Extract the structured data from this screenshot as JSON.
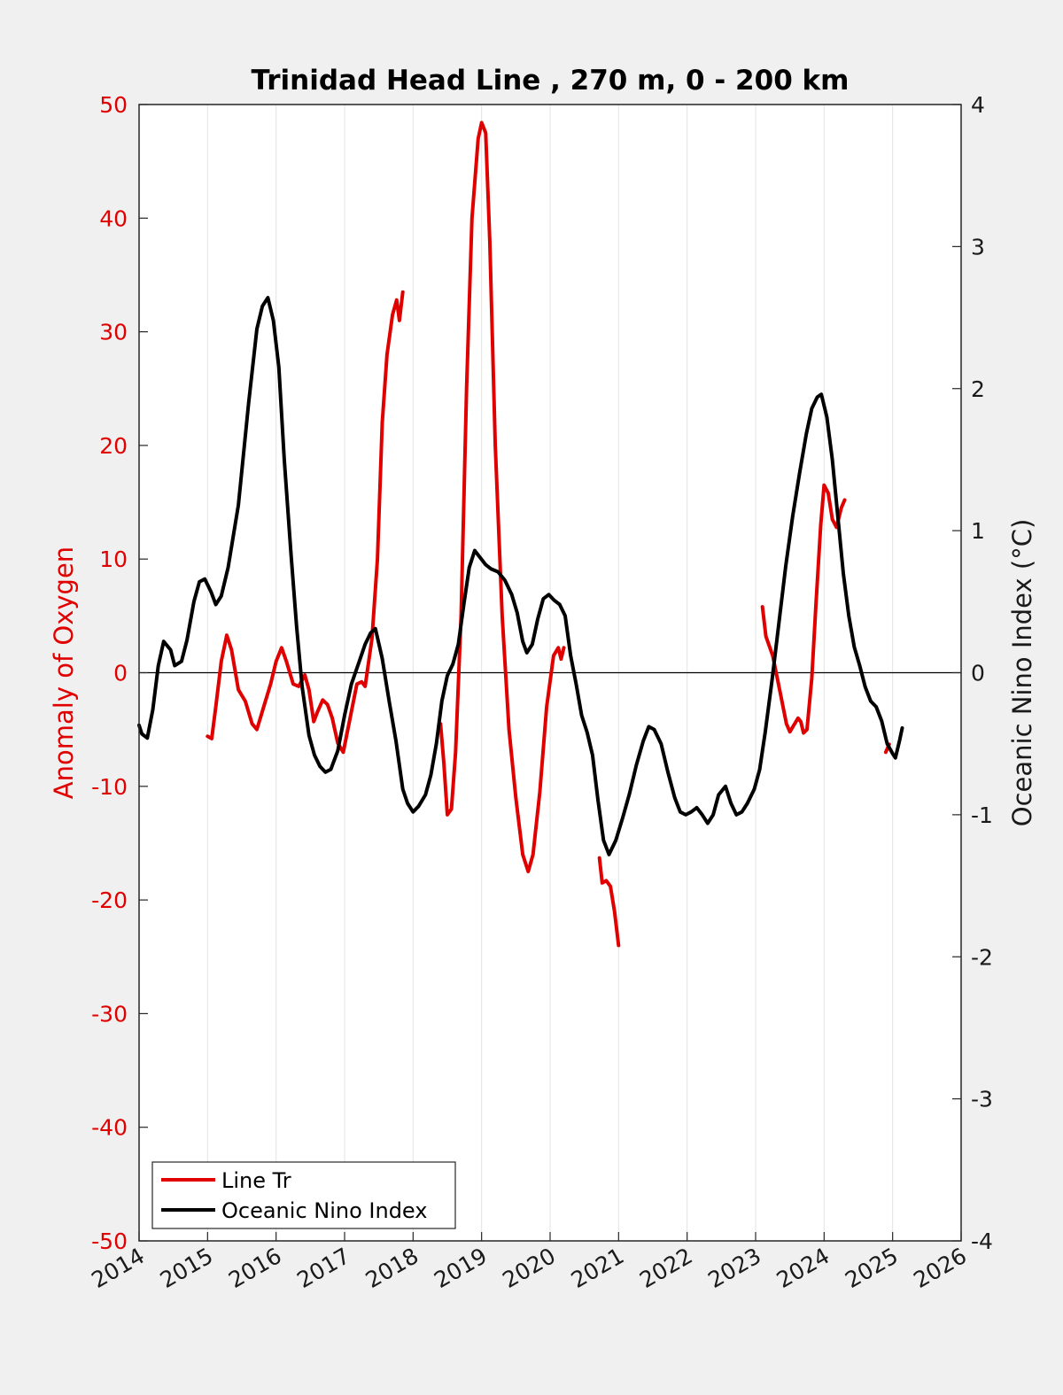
{
  "chart_data": {
    "type": "line",
    "title": "Trinidad Head Line , 270 m, 0 - 200 km",
    "xlabel": "",
    "ylabel_left": "Anomaly of Oxygen",
    "ylabel_right": "Oceanic Nino Index (°C)",
    "xlim": [
      2014,
      2026
    ],
    "ylim_left": [
      -50,
      50
    ],
    "ylim_right": [
      -4,
      4
    ],
    "x_ticks": [
      "2014",
      "2015",
      "2016",
      "2017",
      "2018",
      "2019",
      "2020",
      "2021",
      "2022",
      "2023",
      "2024",
      "2025",
      "2026"
    ],
    "y_ticks_left": [
      "50",
      "40",
      "30",
      "20",
      "10",
      "0",
      "-10",
      "-20",
      "-30",
      "-40",
      "-50"
    ],
    "y_ticks_right": [
      "4",
      "3",
      "2",
      "1",
      "0",
      "-1",
      "-2",
      "-3",
      "-4"
    ],
    "grid": "vertical",
    "legend_position": "bottom-left",
    "colors": {
      "oxygen": "#e00000",
      "oni": "#000000",
      "left_axis": "#e00000",
      "right_axis": "#1a1a1a"
    },
    "series": [
      {
        "name": "Line Tr",
        "axis": "left",
        "segments": [
          [
            [
              2015.0,
              -5.6
            ],
            [
              2015.06,
              -5.8
            ],
            [
              2015.12,
              -3.0
            ],
            [
              2015.2,
              1.0
            ],
            [
              2015.28,
              3.3
            ],
            [
              2015.35,
              2.0
            ],
            [
              2015.45,
              -1.5
            ],
            [
              2015.55,
              -2.5
            ],
            [
              2015.65,
              -4.5
            ],
            [
              2015.72,
              -5.0
            ],
            [
              2015.82,
              -3.0
            ],
            [
              2015.92,
              -1.0
            ],
            [
              2016.0,
              1.0
            ],
            [
              2016.08,
              2.2
            ],
            [
              2016.15,
              1.0
            ],
            [
              2016.25,
              -1.0
            ],
            [
              2016.33,
              -1.2
            ],
            [
              2016.42,
              -0.2
            ],
            [
              2016.48,
              -1.5
            ],
            [
              2016.55,
              -4.3
            ],
            [
              2016.6,
              -3.5
            ],
            [
              2016.68,
              -2.4
            ],
            [
              2016.75,
              -2.8
            ],
            [
              2016.82,
              -4.0
            ],
            [
              2016.9,
              -6.2
            ],
            [
              2016.98,
              -7.0
            ],
            [
              2017.08,
              -4.0
            ],
            [
              2017.18,
              -1.0
            ],
            [
              2017.25,
              -0.8
            ],
            [
              2017.3,
              -1.2
            ],
            [
              2017.4,
              3.0
            ],
            [
              2017.48,
              10.0
            ],
            [
              2017.55,
              22.0
            ],
            [
              2017.62,
              28.0
            ],
            [
              2017.7,
              31.5
            ],
            [
              2017.76,
              32.8
            ],
            [
              2017.8,
              31.0
            ],
            [
              2017.85,
              33.5
            ]
          ],
          [
            [
              2018.4,
              -4.5
            ],
            [
              2018.45,
              -8.0
            ],
            [
              2018.5,
              -12.5
            ],
            [
              2018.56,
              -12.0
            ],
            [
              2018.62,
              -7.0
            ],
            [
              2018.7,
              5.0
            ],
            [
              2018.78,
              25.0
            ],
            [
              2018.86,
              40.0
            ],
            [
              2018.95,
              47.0
            ],
            [
              2019.0,
              48.4
            ],
            [
              2019.06,
              47.5
            ],
            [
              2019.12,
              38.0
            ],
            [
              2019.2,
              20.0
            ],
            [
              2019.3,
              5.0
            ],
            [
              2019.4,
              -5.0
            ],
            [
              2019.5,
              -11.0
            ],
            [
              2019.6,
              -16.0
            ],
            [
              2019.68,
              -17.5
            ],
            [
              2019.75,
              -16.0
            ],
            [
              2019.85,
              -10.5
            ],
            [
              2019.95,
              -3.0
            ],
            [
              2020.05,
              1.5
            ],
            [
              2020.12,
              2.2
            ],
            [
              2020.16,
              1.2
            ],
            [
              2020.2,
              2.2
            ]
          ],
          [
            [
              2020.72,
              -16.3
            ],
            [
              2020.76,
              -18.5
            ],
            [
              2020.82,
              -18.3
            ],
            [
              2020.88,
              -18.8
            ],
            [
              2020.94,
              -21.0
            ],
            [
              2021.0,
              -24.0
            ]
          ],
          [
            [
              2023.1,
              5.8
            ],
            [
              2023.15,
              3.2
            ],
            [
              2023.25,
              1.5
            ],
            [
              2023.35,
              -1.5
            ],
            [
              2023.45,
              -4.5
            ],
            [
              2023.5,
              -5.2
            ],
            [
              2023.56,
              -4.6
            ],
            [
              2023.62,
              -4.0
            ],
            [
              2023.66,
              -4.3
            ],
            [
              2023.7,
              -5.3
            ],
            [
              2023.75,
              -5.0
            ],
            [
              2023.82,
              -0.5
            ],
            [
              2023.88,
              6.0
            ],
            [
              2023.95,
              13.0
            ],
            [
              2024.0,
              16.5
            ],
            [
              2024.06,
              15.8
            ],
            [
              2024.12,
              13.5
            ],
            [
              2024.18,
              12.8
            ],
            [
              2024.25,
              14.5
            ],
            [
              2024.3,
              15.2
            ]
          ],
          [
            [
              2024.9,
              -7.0
            ],
            [
              2024.95,
              -6.3
            ]
          ]
        ]
      },
      {
        "name": "Oceanic Nino Index",
        "axis": "right",
        "segments": [
          [
            [
              2014.0,
              -0.37
            ],
            [
              2014.04,
              -0.43
            ],
            [
              2014.12,
              -0.46
            ],
            [
              2014.2,
              -0.26
            ],
            [
              2014.28,
              0.05
            ],
            [
              2014.36,
              0.22
            ],
            [
              2014.46,
              0.16
            ],
            [
              2014.52,
              0.05
            ],
            [
              2014.62,
              0.08
            ],
            [
              2014.7,
              0.23
            ],
            [
              2014.8,
              0.5
            ],
            [
              2014.88,
              0.64
            ],
            [
              2014.96,
              0.66
            ],
            [
              2015.05,
              0.57
            ],
            [
              2015.12,
              0.48
            ],
            [
              2015.2,
              0.54
            ],
            [
              2015.3,
              0.74
            ],
            [
              2015.45,
              1.18
            ],
            [
              2015.6,
              1.9
            ],
            [
              2015.72,
              2.42
            ],
            [
              2015.8,
              2.58
            ],
            [
              2015.88,
              2.64
            ],
            [
              2015.96,
              2.48
            ],
            [
              2016.04,
              2.15
            ],
            [
              2016.12,
              1.5
            ],
            [
              2016.22,
              0.82
            ],
            [
              2016.3,
              0.32
            ],
            [
              2016.38,
              -0.1
            ],
            [
              2016.48,
              -0.44
            ],
            [
              2016.56,
              -0.58
            ],
            [
              2016.64,
              -0.66
            ],
            [
              2016.72,
              -0.7
            ],
            [
              2016.8,
              -0.68
            ],
            [
              2016.9,
              -0.55
            ],
            [
              2017.0,
              -0.3
            ],
            [
              2017.1,
              -0.08
            ],
            [
              2017.2,
              0.06
            ],
            [
              2017.3,
              0.2
            ],
            [
              2017.38,
              0.28
            ],
            [
              2017.45,
              0.31
            ],
            [
              2017.55,
              0.1
            ],
            [
              2017.65,
              -0.2
            ],
            [
              2017.75,
              -0.48
            ],
            [
              2017.85,
              -0.82
            ],
            [
              2017.92,
              -0.92
            ],
            [
              2018.0,
              -0.98
            ],
            [
              2018.08,
              -0.94
            ],
            [
              2018.18,
              -0.86
            ],
            [
              2018.26,
              -0.72
            ],
            [
              2018.34,
              -0.5
            ],
            [
              2018.42,
              -0.2
            ],
            [
              2018.5,
              -0.02
            ],
            [
              2018.58,
              0.06
            ],
            [
              2018.66,
              0.2
            ],
            [
              2018.74,
              0.48
            ],
            [
              2018.82,
              0.74
            ],
            [
              2018.9,
              0.86
            ],
            [
              2018.98,
              0.81
            ],
            [
              2019.06,
              0.76
            ],
            [
              2019.14,
              0.73
            ],
            [
              2019.24,
              0.71
            ],
            [
              2019.34,
              0.65
            ],
            [
              2019.44,
              0.55
            ],
            [
              2019.52,
              0.42
            ],
            [
              2019.6,
              0.22
            ],
            [
              2019.66,
              0.14
            ],
            [
              2019.74,
              0.2
            ],
            [
              2019.82,
              0.38
            ],
            [
              2019.9,
              0.52
            ],
            [
              2019.98,
              0.55
            ],
            [
              2020.06,
              0.51
            ],
            [
              2020.14,
              0.48
            ],
            [
              2020.22,
              0.4
            ],
            [
              2020.3,
              0.12
            ],
            [
              2020.38,
              -0.08
            ],
            [
              2020.46,
              -0.3
            ],
            [
              2020.54,
              -0.42
            ],
            [
              2020.62,
              -0.58
            ],
            [
              2020.7,
              -0.9
            ],
            [
              2020.78,
              -1.18
            ],
            [
              2020.86,
              -1.28
            ],
            [
              2020.96,
              -1.18
            ],
            [
              2021.06,
              -1.02
            ],
            [
              2021.16,
              -0.85
            ],
            [
              2021.26,
              -0.65
            ],
            [
              2021.36,
              -0.48
            ],
            [
              2021.44,
              -0.38
            ],
            [
              2021.52,
              -0.4
            ],
            [
              2021.62,
              -0.5
            ],
            [
              2021.72,
              -0.7
            ],
            [
              2021.82,
              -0.88
            ],
            [
              2021.9,
              -0.98
            ],
            [
              2021.98,
              -1.0
            ],
            [
              2022.06,
              -0.98
            ],
            [
              2022.14,
              -0.95
            ],
            [
              2022.22,
              -1.0
            ],
            [
              2022.3,
              -1.06
            ],
            [
              2022.38,
              -1.0
            ],
            [
              2022.46,
              -0.86
            ],
            [
              2022.56,
              -0.8
            ],
            [
              2022.64,
              -0.92
            ],
            [
              2022.72,
              -1.0
            ],
            [
              2022.8,
              -0.98
            ],
            [
              2022.88,
              -0.92
            ],
            [
              2022.98,
              -0.82
            ],
            [
              2023.06,
              -0.68
            ],
            [
              2023.14,
              -0.42
            ],
            [
              2023.24,
              -0.05
            ],
            [
              2023.34,
              0.35
            ],
            [
              2023.44,
              0.75
            ],
            [
              2023.54,
              1.1
            ],
            [
              2023.64,
              1.4
            ],
            [
              2023.74,
              1.68
            ],
            [
              2023.82,
              1.86
            ],
            [
              2023.9,
              1.94
            ],
            [
              2023.96,
              1.96
            ],
            [
              2024.04,
              1.8
            ],
            [
              2024.12,
              1.5
            ],
            [
              2024.2,
              1.1
            ],
            [
              2024.28,
              0.7
            ],
            [
              2024.36,
              0.4
            ],
            [
              2024.44,
              0.18
            ],
            [
              2024.52,
              0.05
            ],
            [
              2024.6,
              -0.1
            ],
            [
              2024.68,
              -0.2
            ],
            [
              2024.76,
              -0.24
            ],
            [
              2024.84,
              -0.34
            ],
            [
              2024.92,
              -0.5
            ],
            [
              2025.0,
              -0.57
            ],
            [
              2025.04,
              -0.6
            ],
            [
              2025.1,
              -0.48
            ],
            [
              2025.14,
              -0.39
            ]
          ]
        ]
      }
    ]
  },
  "legend": {
    "items": [
      {
        "label": "Line Tr"
      },
      {
        "label": "Oceanic Nino Index"
      }
    ]
  }
}
